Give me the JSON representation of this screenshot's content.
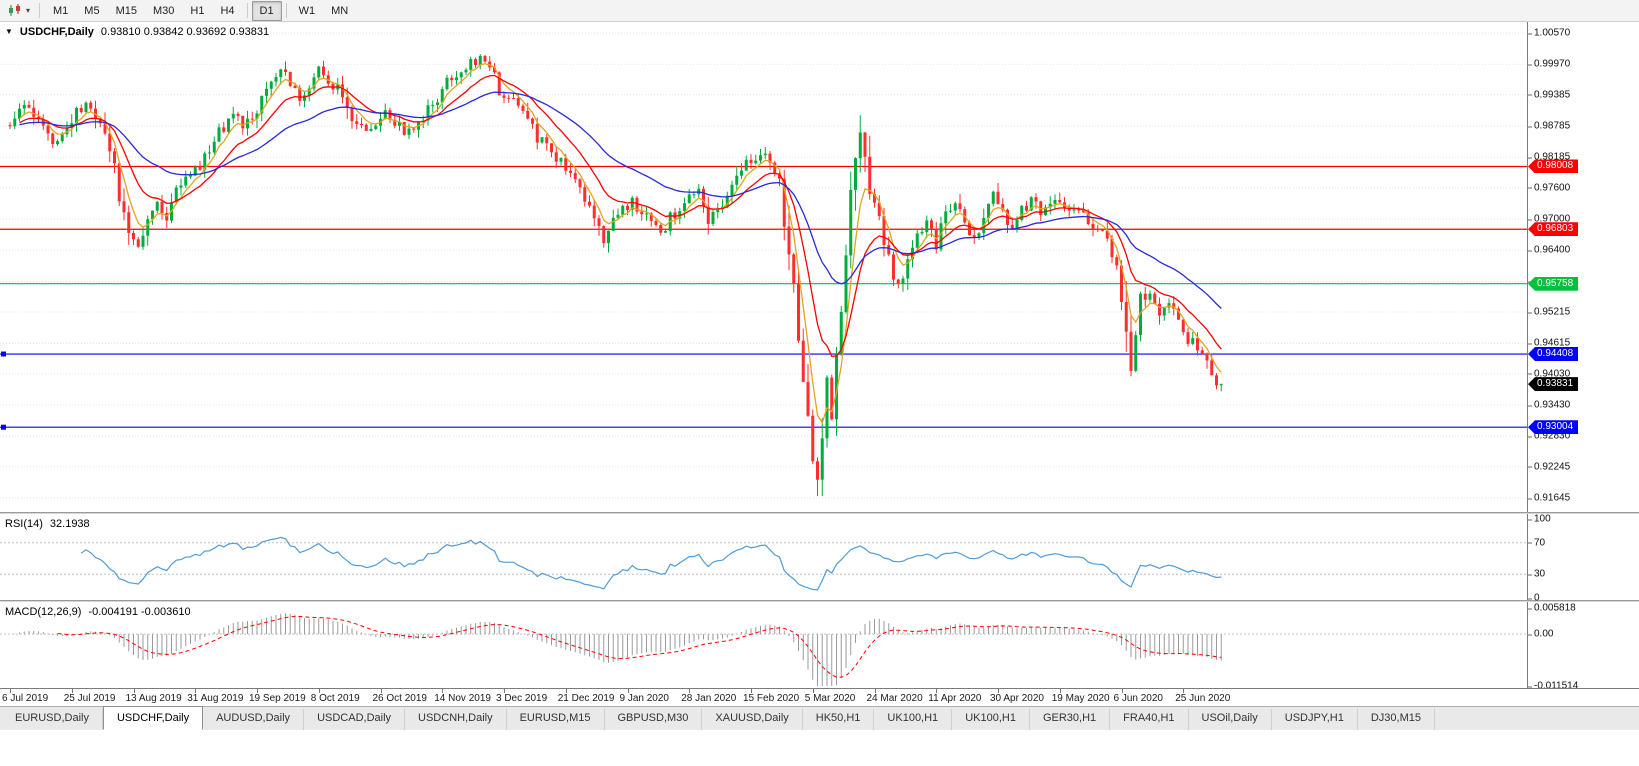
{
  "toolbar": {
    "chart_icon": "candlestick-chart-dropdown",
    "timeframes": [
      "M1",
      "M5",
      "M15",
      "M30",
      "H1",
      "H4",
      "D1",
      "W1",
      "MN"
    ],
    "active_timeframe": "D1"
  },
  "chart": {
    "title": "USDCHF,Daily",
    "ohlc": "0.93810 0.93842 0.93692 0.93831",
    "price_axis_labels": [
      "1.00570",
      "0.99970",
      "0.99385",
      "0.98785",
      "0.98185",
      "0.97600",
      "0.97000",
      "0.96400",
      "0.95800",
      "0.95215",
      "0.94615",
      "0.94030",
      "0.93430",
      "0.92830",
      "0.92245",
      "0.91645"
    ],
    "price_min": 0.91645,
    "price_max": 1.0057,
    "hlines": [
      {
        "price": 0.98008,
        "label": "0.98008",
        "color": "#FF0000",
        "handles": false
      },
      {
        "price": 0.96803,
        "label": "0.96803",
        "color": "#FF0000",
        "handles": false
      },
      {
        "price": 0.95758,
        "label": "0.95758",
        "color": "#00C13C",
        "handles": false
      },
      {
        "price": 0.94408,
        "label": "0.94408",
        "color": "#0000FF",
        "handles": true
      },
      {
        "price": 0.93004,
        "label": "0.93004",
        "color": "#0000FF",
        "handles": true
      }
    ],
    "current_price_label": {
      "value": 0.93831,
      "label": "0.93831",
      "bg": "#000000"
    },
    "colors": {
      "up": "#00AD3C",
      "down": "#FF2D2D",
      "ma_fast": "#DFA520",
      "ma_mid": "#FF0000",
      "ma_slow": "#2A2AD8",
      "grid": "#E2E2E2",
      "rsi_line": "#4F9BD8",
      "macd_hist": "#9A9A9A",
      "macd_signal": "#FF0000",
      "level_dash": "#C0C0C0"
    },
    "chart_data": {
      "type": "candlestick",
      "symbol": "USDCHF",
      "timeframe": "Daily",
      "bars": 256,
      "y_range": [
        0.91645,
        1.0057
      ],
      "x_range": [
        "6 Jul 2019",
        "25 Jun 2020"
      ],
      "last_bar": {
        "open": 0.9381,
        "high": 0.93842,
        "low": 0.93692,
        "close": 0.93831
      },
      "levels": [
        0.98008,
        0.96803,
        0.95758,
        0.94408,
        0.93004
      ],
      "price_path": [
        [
          0,
          0.9885
        ],
        [
          3,
          0.9915
        ],
        [
          6,
          0.988
        ],
        [
          9,
          0.985
        ],
        [
          12,
          0.987
        ],
        [
          14,
          0.9905
        ],
        [
          17,
          0.992
        ],
        [
          19,
          0.988
        ],
        [
          21,
          0.983
        ],
        [
          23,
          0.974
        ],
        [
          25,
          0.967
        ],
        [
          27,
          0.965
        ],
        [
          29,
          0.969
        ],
        [
          31,
          0.972
        ],
        [
          33,
          0.97
        ],
        [
          35,
          0.9745
        ],
        [
          37,
          0.977
        ],
        [
          39,
          0.979
        ],
        [
          41,
          0.9815
        ],
        [
          43,
          0.985
        ],
        [
          45,
          0.988
        ],
        [
          47,
          0.9905
        ],
        [
          49,
          0.9875
        ],
        [
          51,
          0.9895
        ],
        [
          53,
          0.993
        ],
        [
          55,
          0.9965
        ],
        [
          57,
          0.999
        ],
        [
          59,
          0.9955
        ],
        [
          61,
          0.9925
        ],
        [
          63,
          0.9945
        ],
        [
          65,
          0.9985
        ],
        [
          67,
          0.997
        ],
        [
          69,
          0.995
        ],
        [
          71,
          0.9905
        ],
        [
          73,
          0.988
        ],
        [
          75,
          0.987
        ],
        [
          77,
          0.988
        ],
        [
          79,
          0.99
        ],
        [
          81,
          0.9885
        ],
        [
          83,
          0.9868
        ],
        [
          85,
          0.9868
        ],
        [
          87,
          0.989
        ],
        [
          89,
          0.992
        ],
        [
          91,
          0.995
        ],
        [
          93,
          0.997
        ],
        [
          95,
          0.9985
        ],
        [
          97,
          1.0
        ],
        [
          99,
          1.0005
        ],
        [
          101,
          0.9985
        ],
        [
          103,
          0.995
        ],
        [
          105,
          0.993
        ],
        [
          107,
          0.9915
        ],
        [
          109,
          0.989
        ],
        [
          111,
          0.986
        ],
        [
          113,
          0.984
        ],
        [
          115,
          0.982
        ],
        [
          117,
          0.9795
        ],
        [
          119,
          0.9765
        ],
        [
          121,
          0.973
        ],
        [
          123,
          0.97
        ],
        [
          125,
          0.9665
        ],
        [
          127,
          0.97
        ],
        [
          129,
          0.972
        ],
        [
          131,
          0.9735
        ],
        [
          133,
          0.971
        ],
        [
          135,
          0.969
        ],
        [
          137,
          0.9665
        ],
        [
          139,
          0.97
        ],
        [
          141,
          0.972
        ],
        [
          143,
          0.9745
        ],
        [
          145,
          0.9765
        ],
        [
          147,
          0.9705
        ],
        [
          149,
          0.972
        ],
        [
          151,
          0.974
        ],
        [
          153,
          0.978
        ],
        [
          155,
          0.9805
        ],
        [
          157,
          0.982
        ],
        [
          159,
          0.9832
        ],
        [
          161,
          0.98
        ],
        [
          162,
          0.977
        ],
        [
          163,
          0.9705
        ],
        [
          164,
          0.964
        ],
        [
          165,
          0.958
        ],
        [
          166,
          0.948
        ],
        [
          167,
          0.94
        ],
        [
          168,
          0.933
        ],
        [
          169,
          0.9255
        ],
        [
          170,
          0.9195
        ],
        [
          171,
          0.929
        ],
        [
          172,
          0.94
        ],
        [
          173,
          0.933
        ],
        [
          174,
          0.9445
        ],
        [
          175,
          0.9525
        ],
        [
          176,
          0.9625
        ],
        [
          177,
          0.9725
        ],
        [
          178,
          0.9825
        ],
        [
          179,
          0.9872
        ],
        [
          180,
          0.983
        ],
        [
          181,
          0.976
        ],
        [
          183,
          0.969
        ],
        [
          185,
          0.9615
        ],
        [
          187,
          0.956
        ],
        [
          189,
          0.9612
        ],
        [
          191,
          0.966
        ],
        [
          193,
          0.9692
        ],
        [
          195,
          0.9655
        ],
        [
          197,
          0.9703
        ],
        [
          199,
          0.9742
        ],
        [
          201,
          0.969
        ],
        [
          203,
          0.9662
        ],
        [
          205,
          0.97
        ],
        [
          207,
          0.9745
        ],
        [
          209,
          0.9702
        ],
        [
          211,
          0.9672
        ],
        [
          213,
          0.9712
        ],
        [
          215,
          0.9737
        ],
        [
          217,
          0.9702
        ],
        [
          219,
          0.9722
        ],
        [
          221,
          0.9742
        ],
        [
          223,
          0.9702
        ],
        [
          225,
          0.9728
        ],
        [
          227,
          0.97
        ],
        [
          229,
          0.9682
        ],
        [
          231,
          0.9652
        ],
        [
          233,
          0.9622
        ],
        [
          234,
          0.9562
        ],
        [
          235,
          0.9475
        ],
        [
          236,
          0.939
        ],
        [
          237,
          0.9462
        ],
        [
          238,
          0.9528
        ],
        [
          240,
          0.9558
        ],
        [
          242,
          0.9522
        ],
        [
          244,
          0.9548
        ],
        [
          246,
          0.9508
        ],
        [
          248,
          0.9472
        ],
        [
          250,
          0.9448
        ],
        [
          252,
          0.942
        ],
        [
          254,
          0.94
        ],
        [
          255,
          0.9383
        ]
      ],
      "indicators": [
        {
          "type": "MA",
          "period": 5,
          "color": "#DFA520"
        },
        {
          "type": "MA",
          "period": 13,
          "color": "#FF0000"
        },
        {
          "type": "MA",
          "period": 34,
          "color": "#2A2AD8"
        },
        {
          "type": "RSI",
          "period": 14,
          "current": 32.1938
        },
        {
          "type": "MACD",
          "params": [
            12,
            26,
            9
          ],
          "current": [
            -0.004191,
            -0.00361
          ]
        }
      ]
    }
  },
  "rsi": {
    "label": "RSI(14)",
    "value": "32.1938",
    "axis_labels": [
      "100",
      "70",
      "30",
      "0"
    ],
    "level_lines": [
      70,
      30
    ]
  },
  "macd": {
    "label": "MACD(12,26,9)",
    "values": "-0.004191 -0.003610",
    "axis_labels": [
      "0.005818",
      "0.00",
      "-0.011514"
    ]
  },
  "time_axis": {
    "bars_per_label": 13,
    "dates": [
      "6 Jul 2019",
      "25 Jul 2019",
      "13 Aug 2019",
      "31 Aug 2019",
      "19 Sep 2019",
      "8 Oct 2019",
      "26 Oct 2019",
      "14 Nov 2019",
      "3 Dec 2019",
      "21 Dec 2019",
      "9 Jan 2020",
      "28 Jan 2020",
      "15 Feb 2020",
      "5 Mar 2020",
      "24 Mar 2020",
      "11 Apr 2020",
      "30 Apr 2020",
      "19 May 2020",
      "6 Jun 2020",
      "25 Jun 2020"
    ]
  },
  "tabs": {
    "active_index": 1,
    "items": [
      "EURUSD,Daily",
      "USDCHF,Daily",
      "AUDUSD,Daily",
      "USDCAD,Daily",
      "USDCNH,Daily",
      "EURUSD,M15",
      "GBPUSD,M30",
      "XAUUSD,Daily",
      "HK50,H1",
      "UK100,H1",
      "UK100,H1",
      "GER30,H1",
      "FRA40,H1",
      "USOil,Daily",
      "USDJPY,H1",
      "DJ30,M15"
    ]
  }
}
